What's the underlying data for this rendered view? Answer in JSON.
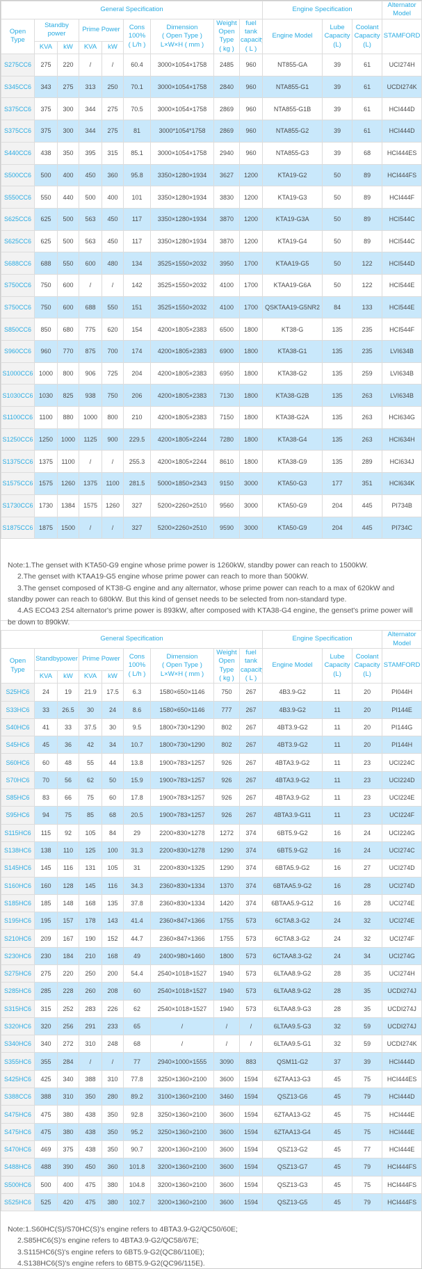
{
  "colors": {
    "accent_blue": "#29abe2",
    "stripe_blue": "#c9e8fb",
    "model_column_gray": "#f2f2f2",
    "border_gray": "#dcdcdc",
    "body_text": "#4a4a4a"
  },
  "t1": {
    "headers": {
      "group_general": "General Specification",
      "group_engine": "Engine Specification",
      "group_alternator": [
        "Alternator",
        "Model"
      ],
      "open_type": "Open Type",
      "standby": [
        "Standby",
        "power"
      ],
      "prime": "Prime Power",
      "units": [
        "KVA",
        "kW",
        "KVA",
        "kW"
      ],
      "cons": [
        "Cons",
        "100%",
        "( L/h )"
      ],
      "dimension": [
        "Dimension",
        "( Open Type )",
        "L×W×H ( mm )"
      ],
      "weight": [
        "Weight",
        "Open Type",
        "( kg )"
      ],
      "fuel": [
        "fuel tank",
        "capacity",
        "( L )"
      ],
      "engine_model": "Engine Model",
      "lube": [
        "Lube",
        "Capacity",
        "(L)"
      ],
      "coolant": [
        "Coolant",
        "Capacity",
        "(L)"
      ],
      "stamford": "STAMFORD"
    },
    "rows": [
      [
        "S275CC6",
        "275",
        "220",
        "/",
        "/",
        "60.4",
        "3000×1054×1758",
        "2485",
        "960",
        "NT855-GA",
        "39",
        "61",
        "UCI274H"
      ],
      [
        "S345CC6",
        "343",
        "275",
        "313",
        "250",
        "70.1",
        "3000×1054×1758",
        "2840",
        "960",
        "NTA855-G1",
        "39",
        "61",
        "UCDI274K"
      ],
      [
        "S375CC6",
        "375",
        "300",
        "344",
        "275",
        "70.5",
        "3000×1054×1758",
        "2869",
        "960",
        "NTA855-G1B",
        "39",
        "61",
        "HCI444D"
      ],
      [
        "S375CC6",
        "375",
        "300",
        "344",
        "275",
        "81",
        "3000*1054*1758",
        "2869",
        "960",
        "NTA855-G2",
        "39",
        "61",
        "HCI444D"
      ],
      [
        "S440CC6",
        "438",
        "350",
        "395",
        "315",
        "85.1",
        "3000×1054×1758",
        "2940",
        "960",
        "NTA855-G3",
        "39",
        "68",
        "HCI444ES"
      ],
      [
        "S500CC6",
        "500",
        "400",
        "450",
        "360",
        "95.8",
        "3350×1280×1934",
        "3627",
        "1200",
        "KTA19-G2",
        "50",
        "89",
        "HCI444FS"
      ],
      [
        "S550CC6",
        "550",
        "440",
        "500",
        "400",
        "101",
        "3350×1280×1934",
        "3830",
        "1200",
        "KTA19-G3",
        "50",
        "89",
        "HCI444F"
      ],
      [
        "S625CC6",
        "625",
        "500",
        "563",
        "450",
        "117",
        "3350×1280×1934",
        "3870",
        "1200",
        "KTA19-G3A",
        "50",
        "89",
        "HCI544C"
      ],
      [
        "S625CC6",
        "625",
        "500",
        "563",
        "450",
        "117",
        "3350×1280×1934",
        "3870",
        "1200",
        "KTA19-G4",
        "50",
        "89",
        "HCI544C"
      ],
      [
        "S688CC6",
        "688",
        "550",
        "600",
        "480",
        "134",
        "3525×1550×2032",
        "3950",
        "1700",
        "KTAA19-G5",
        "50",
        "122",
        "HCI544D"
      ],
      [
        "S750CC6",
        "750",
        "600",
        "/",
        "/",
        "142",
        "3525×1550×2032",
        "4100",
        "1700",
        "KTAA19-G6A",
        "50",
        "122",
        "HCI544E"
      ],
      [
        "S750CC6",
        "750",
        "600",
        "688",
        "550",
        "151",
        "3525×1550×2032",
        "4100",
        "1700",
        "QSKTAA19-G5NR2",
        "84",
        "133",
        "HCI544E"
      ],
      [
        "S850CC6",
        "850",
        "680",
        "775",
        "620",
        "154",
        "4200×1805×2383",
        "6500",
        "1800",
        "KT38-G",
        "135",
        "235",
        "HCI544F"
      ],
      [
        "S960CC6",
        "960",
        "770",
        "875",
        "700",
        "174",
        "4200×1805×2383",
        "6900",
        "1800",
        "KTA38-G1",
        "135",
        "235",
        "LVI634B"
      ],
      [
        "S1000CC6",
        "1000",
        "800",
        "906",
        "725",
        "204",
        "4200×1805×2383",
        "6950",
        "1800",
        "KTA38-G2",
        "135",
        "259",
        "LVI634B"
      ],
      [
        "S1030CC6",
        "1030",
        "825",
        "938",
        "750",
        "206",
        "4200×1805×2383",
        "7130",
        "1800",
        "KTA38-G2B",
        "135",
        "263",
        "LVI634B"
      ],
      [
        "S1100CC6",
        "1100",
        "880",
        "1000",
        "800",
        "210",
        "4200×1805×2383",
        "7150",
        "1800",
        "KTA38-G2A",
        "135",
        "263",
        "HCI634G"
      ],
      [
        "S1250CC6",
        "1250",
        "1000",
        "1125",
        "900",
        "229.5",
        "4200×1805×2244",
        "7280",
        "1800",
        "KTA38-G4",
        "135",
        "263",
        "HCI634H"
      ],
      [
        "S1375CC6",
        "1375",
        "1100",
        "/",
        "/",
        "255.3",
        "4200×1805×2244",
        "8610",
        "1800",
        "KTA38-G9",
        "135",
        "289",
        "HCI634J"
      ],
      [
        "S1575CC6",
        "1575",
        "1260",
        "1375",
        "1100",
        "281.5",
        "5000×1850×2343",
        "9150",
        "3000",
        "KTA50-G3",
        "177",
        "351",
        "HCI634K"
      ],
      [
        "S1730CC6",
        "1730",
        "1384",
        "1575",
        "1260",
        "327",
        "5200×2260×2510",
        "9560",
        "3000",
        "KTA50-G9",
        "204",
        "445",
        "PI734B"
      ],
      [
        "S1875CC6",
        "1875",
        "1500",
        "/",
        "/",
        "327",
        "5200×2260×2510",
        "9590",
        "3000",
        "KTA50-G9",
        "204",
        "445",
        "PI734C"
      ]
    ]
  },
  "notes1": {
    "lines": [
      "Note:1.The genset with KTA50-G9 engine whose prime power is 1260kW, standby power can reach to 1500kW.",
      "2.The genset with KTAA19-G5 engine whose prime power can reach to more than 500kW.",
      "3.The genset composed of KT38-G engine and any alternator, whose prime power can reach to a max of 620kW and standby power can reach to 680kW. But this kind of genset needs to be selected from non-standard type.",
      "4.AS ECO43 2S4 alternator's prime power is 893kW, after composed with KTA38-G4 engine, the genset's prime power will be down to 890kW."
    ]
  },
  "t2": {
    "headers": {
      "group_general": "General Specification",
      "group_engine": "Engine Specification",
      "group_alternator": [
        "Alternator",
        "Model"
      ],
      "open_type": "Open Type",
      "standby": "Standbypower",
      "prime": "Prime Power",
      "units": [
        "KVA",
        "kW",
        "KVA",
        "kW"
      ],
      "cons": [
        "Cons",
        "100%",
        "( L/h )"
      ],
      "dimension": [
        "Dimension",
        "( Open Type )",
        "L×W×H ( mm )"
      ],
      "weight": [
        "Weight",
        "Open Type",
        "( kg )"
      ],
      "fuel": [
        "fuel tank",
        "capacity",
        "( L )"
      ],
      "engine_model": "Engine Model",
      "lube": [
        "Lube",
        "Capacity",
        "(L)"
      ],
      "coolant": [
        "Coolant",
        "Capacity",
        "(L)"
      ],
      "stamford": "STAMFORD"
    },
    "rows": [
      [
        "S25HC6",
        "24",
        "19",
        "21.9",
        "17.5",
        "6.3",
        "1580×650×1146",
        "750",
        "267",
        "4B3.9-G2",
        "11",
        "20",
        "PI044H"
      ],
      [
        "S33HC6",
        "33",
        "26.5",
        "30",
        "24",
        "8.6",
        "1580×650×1146",
        "777",
        "267",
        "4B3.9-G2",
        "11",
        "20",
        "PI144E"
      ],
      [
        "S40HC6",
        "41",
        "33",
        "37.5",
        "30",
        "9.5",
        "1800×730×1290",
        "802",
        "267",
        "4BT3.9-G2",
        "11",
        "20",
        "PI144G"
      ],
      [
        "S45HC6",
        "45",
        "36",
        "42",
        "34",
        "10.7",
        "1800×730×1290",
        "802",
        "267",
        "4BT3.9-G2",
        "11",
        "20",
        "PI144H"
      ],
      [
        "S60HC6",
        "60",
        "48",
        "55",
        "44",
        "13.8",
        "1900×783×1257",
        "926",
        "267",
        "4BTA3.9-G2",
        "11",
        "23",
        "UCI224C"
      ],
      [
        "S70HC6",
        "70",
        "56",
        "62",
        "50",
        "15.9",
        "1900×783×1257",
        "926",
        "267",
        "4BTA3.9-G2",
        "11",
        "23",
        "UCI224D"
      ],
      [
        "S85HC6",
        "83",
        "66",
        "75",
        "60",
        "17.8",
        "1900×783×1257",
        "926",
        "267",
        "4BTA3.9-G2",
        "11",
        "23",
        "UCI224E"
      ],
      [
        "S95HC6",
        "94",
        "75",
        "85",
        "68",
        "20.5",
        "1900×783×1257",
        "926",
        "267",
        "4BTA3.9-G11",
        "11",
        "23",
        "UCI224F"
      ],
      [
        "S115HC6",
        "115",
        "92",
        "105",
        "84",
        "29",
        "2200×830×1278",
        "1272",
        "374",
        "6BT5.9-G2",
        "16",
        "24",
        "UCI224G"
      ],
      [
        "S138HC6",
        "138",
        "110",
        "125",
        "100",
        "31.3",
        "2200×830×1278",
        "1290",
        "374",
        "6BT5.9-G2",
        "16",
        "24",
        "UCI274C"
      ],
      [
        "S145HC6",
        "145",
        "116",
        "131",
        "105",
        "31",
        "2200×830×1325",
        "1290",
        "374",
        "6BTA5.9-G2",
        "16",
        "27",
        "UCI274D"
      ],
      [
        "S160HC6",
        "160",
        "128",
        "145",
        "116",
        "34.3",
        "2360×830×1334",
        "1370",
        "374",
        "6BTAA5.9-G2",
        "16",
        "28",
        "UCI274D"
      ],
      [
        "S185HC6",
        "185",
        "148",
        "168",
        "135",
        "37.8",
        "2360×830×1334",
        "1420",
        "374",
        "6BTAA5.9-G12",
        "16",
        "28",
        "UCI274E"
      ],
      [
        "S195HC6",
        "195",
        "157",
        "178",
        "143",
        "41.4",
        "2360×847×1366",
        "1755",
        "573",
        "6CTA8.3-G2",
        "24",
        "32",
        "UCI274E"
      ],
      [
        "S210HC6",
        "209",
        "167",
        "190",
        "152",
        "44.7",
        "2360×847×1366",
        "1755",
        "573",
        "6CTA8.3-G2",
        "24",
        "32",
        "UCI274F"
      ],
      [
        "S230HC6",
        "230",
        "184",
        "210",
        "168",
        "49",
        "2400×980×1460",
        "1800",
        "573",
        "6CTAA8.3-G2",
        "24",
        "34",
        "UCI274G"
      ],
      [
        "S275HC6",
        "275",
        "220",
        "250",
        "200",
        "54.4",
        "2540×1018×1527",
        "1940",
        "573",
        "6LTAA8.9-G2",
        "28",
        "35",
        "UCI274H"
      ],
      [
        "S285HC6",
        "285",
        "228",
        "260",
        "208",
        "60",
        "2540×1018×1527",
        "1940",
        "573",
        "6LTAA8.9-G2",
        "28",
        "35",
        "UCDI274J"
      ],
      [
        "S315HC6",
        "315",
        "252",
        "283",
        "226",
        "62",
        "2540×1018×1527",
        "1940",
        "573",
        "6LTAA8.9-G3",
        "28",
        "35",
        "UCDI274J"
      ],
      [
        "S320HC6",
        "320",
        "256",
        "291",
        "233",
        "65",
        "/",
        "/",
        "/",
        "6LTAA9.5-G3",
        "32",
        "59",
        "UCDI274J"
      ],
      [
        "S340HC6",
        "340",
        "272",
        "310",
        "248",
        "68",
        "/",
        "/",
        "/",
        "6LTAA9.5-G1",
        "32",
        "59",
        "UCDI274K"
      ],
      [
        "S355HC6",
        "355",
        "284",
        "/",
        "/",
        "77",
        "2940×1000×1555",
        "3090",
        "883",
        "QSM11-G2",
        "37",
        "39",
        "HCI444D"
      ],
      [
        "S425HC6",
        "425",
        "340",
        "388",
        "310",
        "77.8",
        "3250×1360×2100",
        "3600",
        "1594",
        "6ZTAA13-G3",
        "45",
        "75",
        "HCI444ES"
      ],
      [
        "S388CC6",
        "388",
        "310",
        "350",
        "280",
        "89.2",
        "3100×1360×2100",
        "3460",
        "1594",
        "QSZ13-G6",
        "45",
        "79",
        "HCI444D"
      ],
      [
        "S475HC6",
        "475",
        "380",
        "438",
        "350",
        "92.8",
        "3250×1360×2100",
        "3600",
        "1594",
        "6ZTAA13-G2",
        "45",
        "75",
        "HCI444E"
      ],
      [
        "S475HC6",
        "475",
        "380",
        "438",
        "350",
        "95.2",
        "3250×1360×2100",
        "3600",
        "1594",
        "6ZTAA13-G4",
        "45",
        "75",
        "HCI444E"
      ],
      [
        "S470HC6",
        "469",
        "375",
        "438",
        "350",
        "90.7",
        "3200×1360×2100",
        "3600",
        "1594",
        "QSZ13-G2",
        "45",
        "77",
        "HCI444E"
      ],
      [
        "S488HC6",
        "488",
        "390",
        "450",
        "360",
        "101.8",
        "3200×1360×2100",
        "3600",
        "1594",
        "QSZ13-G7",
        "45",
        "79",
        "HCI444FS"
      ],
      [
        "S500HC6",
        "500",
        "400",
        "475",
        "380",
        "104.8",
        "3200×1360×2100",
        "3600",
        "1594",
        "QSZ13-G3",
        "45",
        "75",
        "HCI444FS"
      ],
      [
        "S525HC6",
        "525",
        "420",
        "475",
        "380",
        "102.7",
        "3200×1360×2100",
        "3600",
        "1594",
        "QSZ13-G5",
        "45",
        "79",
        "HCI444FS"
      ]
    ]
  },
  "notes2": {
    "lines": [
      "Note:1.S60HC(S)/S70HC(S)'s engine refers to 4BTA3.9-G2/QC50/60E;",
      "2.S85HC6(S)'s engine refers to 4BTA3.9-G2/QC58/67E;",
      "3.S115HC6(S)'s engine refers to 6BT5.9-G2(QC86/110E);",
      "4.S138HC6(S)'s engine refers to 6BT5.9-G2(QC96/115E)."
    ]
  }
}
